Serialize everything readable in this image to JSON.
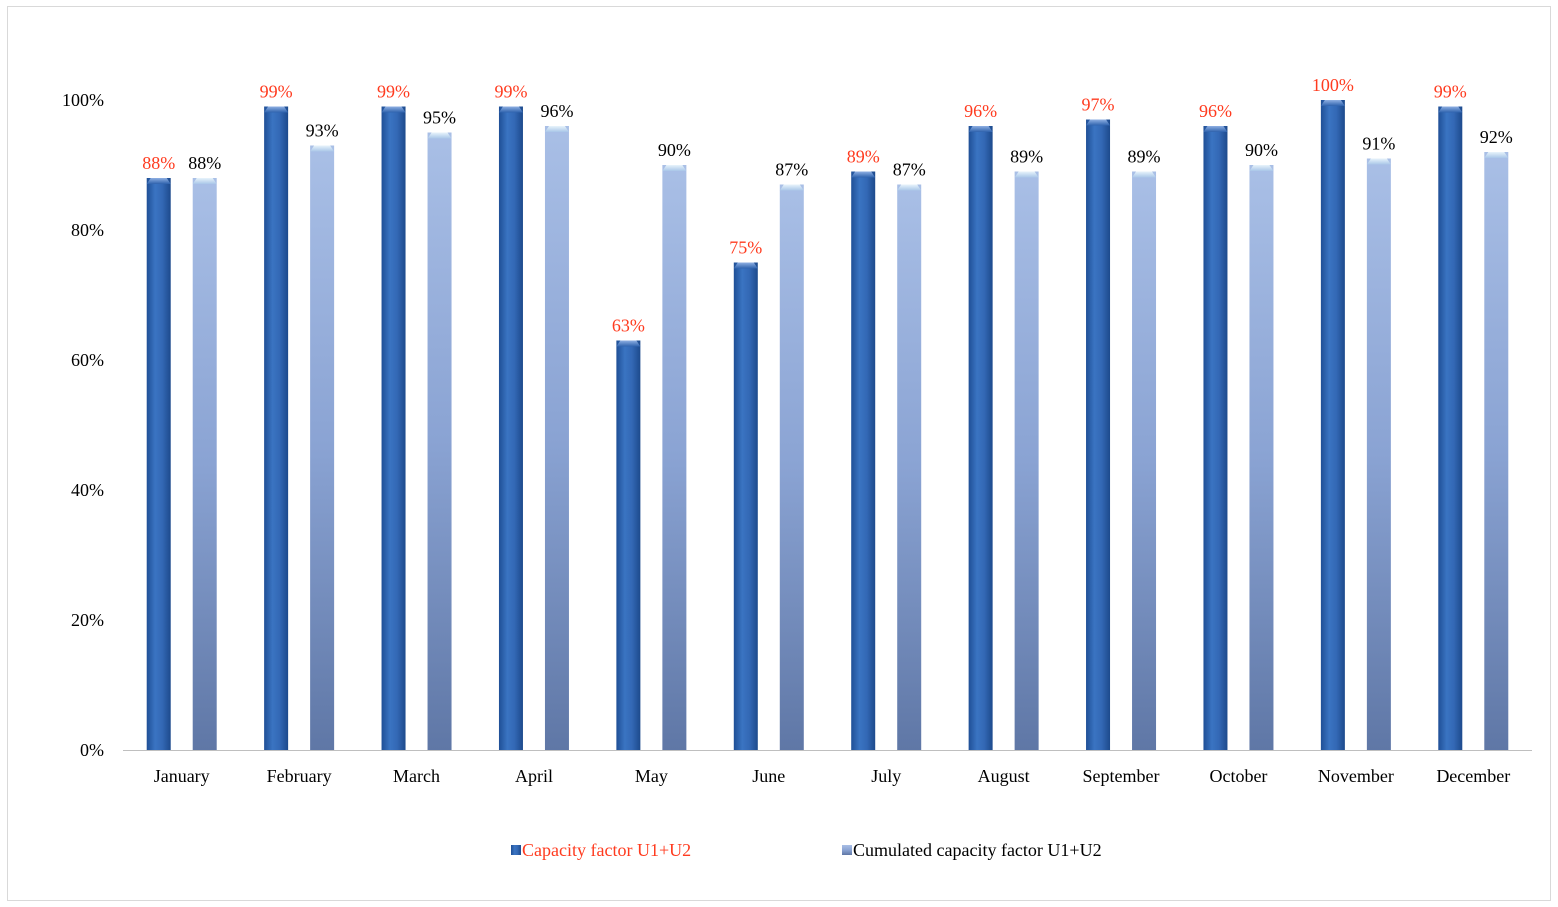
{
  "chart_data": {
    "type": "bar",
    "categories": [
      "January",
      "February",
      "March",
      "April",
      "May",
      "June",
      "July",
      "August",
      "September",
      "October",
      "November",
      "December"
    ],
    "series": [
      {
        "name": "Capacity factor U1+U2",
        "values": [
          88,
          99,
          99,
          99,
          63,
          75,
          89,
          96,
          97,
          96,
          100,
          99
        ],
        "labels": [
          "88%",
          "99%",
          "99%",
          "99%",
          "63%",
          "75%",
          "89%",
          "96%",
          "97%",
          "96%",
          "100%",
          "99%"
        ],
        "color": "#2e62ad",
        "label_color": "#ff3b1f"
      },
      {
        "name": "Cumulated capacity factor U1+U2",
        "values": [
          88,
          93,
          95,
          96,
          90,
          87,
          87,
          89,
          89,
          90,
          91,
          92
        ],
        "labels": [
          "88%",
          "93%",
          "95%",
          "96%",
          "90%",
          "87%",
          "87%",
          "89%",
          "89%",
          "90%",
          "91%",
          "92%"
        ],
        "color": "#8ea6d4",
        "label_color": "#000000"
      }
    ],
    "y_ticks": [
      "0%",
      "20%",
      "40%",
      "60%",
      "80%",
      "100%"
    ],
    "ylim": [
      0,
      100
    ],
    "grid": false,
    "legend_position": "bottom"
  }
}
